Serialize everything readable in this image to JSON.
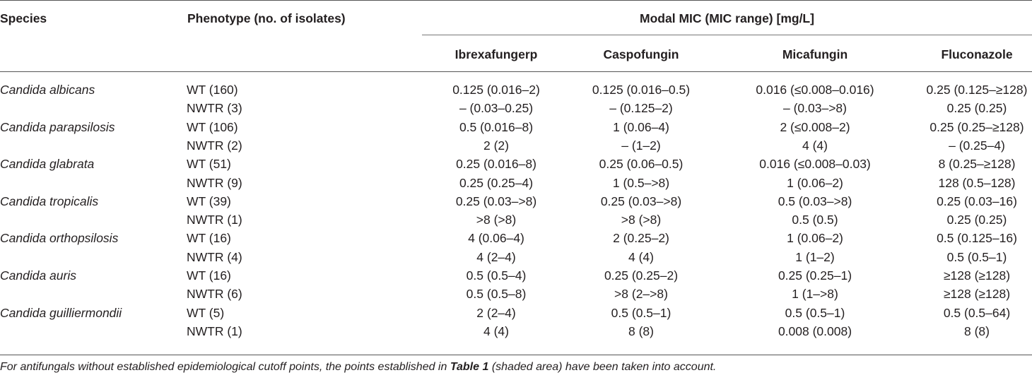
{
  "header": {
    "species": "Species",
    "phenotype": "Phenotype (no. of isolates)",
    "modal": "Modal MIC (MIC range) [mg/L]",
    "columns": [
      "Ibrexafungerp",
      "Caspofungin",
      "Micafungin",
      "Fluconazole"
    ]
  },
  "rows": [
    {
      "species": "Candida albicans",
      "phenotype": "WT (160)",
      "values": [
        "0.125 (0.016–2)",
        "0.125 (0.016–0.5)",
        "0.016 (≤0.008–0.016)",
        "0.25 (0.125–≥128)"
      ]
    },
    {
      "species": "",
      "phenotype": "NWTR (3)",
      "values": [
        "– (0.03–0.25)",
        "– (0.125–2)",
        "– (0.03–>8)",
        "0.25 (0.25)"
      ]
    },
    {
      "species": "Candida parapsilosis",
      "phenotype": "WT (106)",
      "values": [
        "0.5 (0.016–8)",
        "1 (0.06–4)",
        "2 (≤0.008–2)",
        "0.25 (0.25–≥128)"
      ]
    },
    {
      "species": "",
      "phenotype": "NWTR (2)",
      "values": [
        "2 (2)",
        "– (1–2)",
        "4 (4)",
        "– (0.25–4)"
      ]
    },
    {
      "species": "Candida glabrata",
      "phenotype": "WT (51)",
      "values": [
        "0.25 (0.016–8)",
        "0.25 (0.06–0.5)",
        "0.016 (≤0.008–0.03)",
        "8 (0.25–≥128)"
      ]
    },
    {
      "species": "",
      "phenotype": "NWTR (9)",
      "values": [
        "0.25 (0.25–4)",
        "1 (0.5–>8)",
        "1 (0.06–2)",
        "128 (0.5–128)"
      ]
    },
    {
      "species": "Candida tropicalis",
      "phenotype": "WT (39)",
      "values": [
        "0.25 (0.03–>8)",
        "0.25 (0.03–>8)",
        "0.5 (0.03–>8)",
        "0.25 (0.03–16)"
      ]
    },
    {
      "species": "",
      "phenotype": "NWTR (1)",
      "values": [
        ">8 (>8)",
        ">8 (>8)",
        "0.5 (0.5)",
        "0.25 (0.25)"
      ]
    },
    {
      "species": "Candida orthopsilosis",
      "phenotype": "WT (16)",
      "values": [
        "4 (0.06–4)",
        "2 (0.25–2)",
        "1 (0.06–2)",
        "0.5 (0.125–16)"
      ]
    },
    {
      "species": "",
      "phenotype": "NWTR (4)",
      "values": [
        "4 (2–4)",
        "4 (4)",
        "1 (1–2)",
        "0.5 (0.5–1)"
      ]
    },
    {
      "species": "Candida auris",
      "phenotype": "WT (16)",
      "values": [
        "0.5 (0.5–4)",
        "0.25 (0.25–2)",
        "0.25 (0.25–1)",
        "≥128 (≥128)"
      ]
    },
    {
      "species": "",
      "phenotype": "NWTR (6)",
      "values": [
        "0.5 (0.5–8)",
        ">8 (2–>8)",
        "1 (1–>8)",
        "≥128 (≥128)"
      ]
    },
    {
      "species": "Candida guilliermondii",
      "phenotype": "WT (5)",
      "values": [
        "2 (2–4)",
        "0.5 (0.5–1)",
        "0.5 (0.5–1)",
        "0.5 (0.5–64)"
      ]
    },
    {
      "species": "",
      "phenotype": "NWTR (1)",
      "values": [
        "4 (4)",
        "8 (8)",
        "0.008 (0.008)",
        "8 (8)"
      ]
    }
  ],
  "footnote": {
    "before": "For antifungals without established epidemiological cutoff points, the points established in ",
    "ref": "Table 1",
    "after": " (shaded area) have been taken into account."
  }
}
